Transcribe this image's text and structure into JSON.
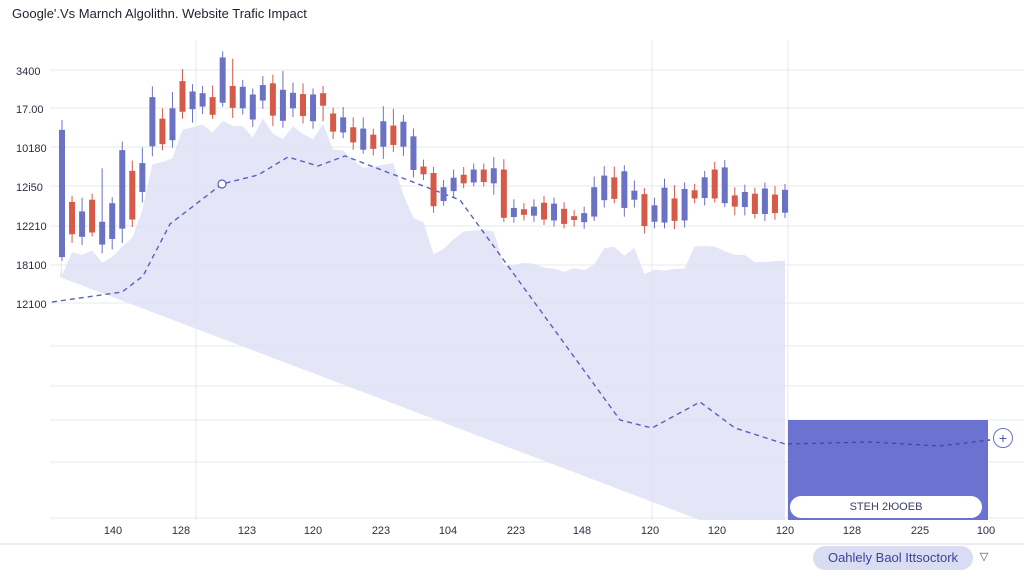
{
  "title": "Google'.Vs Marnch Algolithn. Website Trafic Impact",
  "footer": {
    "button_label": "Oahlely Baol Ittsoctork",
    "chevron_icon": "chevron-down-icon"
  },
  "overlay": {
    "label": "STEH 2ЮOEB",
    "plus_icon": "plus-icon"
  },
  "colors": {
    "up": "#6b72c4",
    "down": "#d55a4a",
    "area": "#dfe1f4",
    "trend": "#5a61bc",
    "overlay": "#6b72cf",
    "grid": "#e7e8ee"
  },
  "chart_data": {
    "type": "candlestick",
    "title": "Google'.Vs Marnch Algolithn. Website Trafic Impact",
    "y_tick_labels": [
      "3400",
      "17.00",
      "10180",
      "12i50",
      "12210",
      "18100",
      "12100"
    ],
    "x_tick_labels": [
      "140",
      "128",
      "123",
      "120",
      "223",
      "104",
      "223",
      "148",
      "120",
      "120",
      "120",
      "128",
      "225",
      "100"
    ],
    "ylim": [
      0,
      100
    ],
    "grid": true,
    "candles": [
      [
        60.5,
        90.0,
        90.9,
        61.3,
        "up"
      ],
      [
        73.3,
        65.8,
        73.0,
        64.7,
        "down"
      ],
      [
        65.2,
        71.1,
        72.9,
        64.2,
        "up"
      ],
      [
        73.8,
        66.2,
        66.1,
        74.2,
        "down"
      ],
      [
        63.4,
        68.7,
        79.7,
        62.3,
        "up"
      ],
      [
        64.7,
        73.0,
        72.2,
        63.2,
        "up"
      ],
      [
        67.1,
        85.3,
        85.9,
        64.7,
        "up"
      ],
      [
        80.5,
        69.2,
        81.5,
        68.4,
        "down"
      ],
      [
        75.6,
        82.3,
        84.5,
        74.1,
        "up"
      ],
      [
        86.2,
        97.6,
        98.7,
        84.8,
        "up"
      ],
      [
        92.6,
        86.7,
        93.6,
        86.2,
        "down"
      ],
      [
        87.6,
        95.0,
        97.4,
        86.8,
        "up"
      ],
      [
        101.3,
        94.2,
        102.7,
        93.5,
        "down"
      ],
      [
        94.8,
        98.9,
        99.2,
        92.6,
        "up"
      ],
      [
        95.4,
        98.5,
        98.8,
        94.6,
        "up"
      ],
      [
        97.6,
        93.5,
        98.9,
        93.8,
        "down"
      ],
      [
        96.3,
        106.8,
        105.2,
        96.5,
        "up"
      ],
      [
        100.2,
        95.1,
        105.1,
        93.7,
        "down"
      ],
      [
        95.0,
        100.0,
        100.2,
        94.5,
        "up"
      ],
      [
        92.4,
        98.2,
        97.9,
        91.6,
        "up"
      ],
      [
        96.8,
        100.4,
        101.1,
        95.8,
        "up"
      ],
      [
        100.8,
        93.3,
        101.4,
        91.8,
        "down"
      ],
      [
        92.1,
        99.3,
        102.3,
        91.4,
        "up"
      ],
      [
        95.0,
        98.6,
        99.6,
        93.9,
        "up"
      ],
      [
        98.3,
        93.2,
        99.4,
        92.4,
        "down"
      ],
      [
        92.0,
        98.2,
        98.2,
        91.2,
        "up"
      ],
      [
        98.5,
        95.6,
        98.8,
        92.9,
        "down"
      ],
      [
        93.8,
        89.6,
        93.7,
        88.8,
        "down"
      ],
      [
        89.4,
        92.9,
        93.9,
        89.0,
        "up"
      ],
      [
        90.6,
        87.1,
        91.5,
        86.3,
        "down"
      ],
      [
        85.4,
        90.3,
        91.5,
        85.6,
        "up"
      ],
      [
        88.9,
        85.6,
        88.8,
        85.0,
        "down"
      ],
      [
        86.1,
        92.0,
        94.1,
        84.2,
        "up"
      ],
      [
        91.0,
        86.5,
        93.5,
        85.8,
        "down"
      ],
      [
        86.1,
        91.9,
        92.1,
        84.9,
        "up"
      ],
      [
        80.7,
        88.5,
        88.9,
        79.9,
        "up"
      ],
      [
        81.5,
        79.7,
        81.7,
        79.3,
        "down"
      ],
      [
        80.0,
        72.3,
        78.7,
        71.7,
        "down"
      ],
      [
        73.5,
        76.7,
        77.0,
        73.3,
        "up"
      ],
      [
        75.8,
        78.9,
        79.4,
        75.2,
        "up"
      ],
      [
        79.6,
        77.6,
        80.0,
        77.4,
        "down"
      ],
      [
        77.8,
        80.8,
        80.5,
        77.9,
        "up"
      ],
      [
        80.8,
        77.9,
        80.6,
        77.8,
        "down"
      ],
      [
        77.6,
        81.1,
        82.3,
        75.9,
        "up"
      ],
      [
        80.8,
        69.6,
        81.8,
        69.6,
        "down"
      ],
      [
        69.8,
        71.9,
        72.5,
        69.4,
        "up"
      ],
      [
        71.6,
        70.3,
        71.6,
        69.9,
        "down"
      ],
      [
        70.1,
        72.2,
        72.5,
        69.6,
        "up"
      ],
      [
        73.1,
        69.2,
        73.3,
        68.9,
        "down"
      ],
      [
        69.0,
        72.9,
        72.5,
        68.5,
        "up"
      ],
      [
        71.7,
        68.2,
        71.8,
        68.1,
        "down"
      ],
      [
        70.0,
        69.1,
        69.9,
        68.5,
        "down"
      ],
      [
        68.6,
        70.7,
        70.8,
        68.0,
        "up"
      ],
      [
        69.9,
        76.7,
        77.8,
        69.8,
        "up"
      ],
      [
        73.7,
        79.4,
        80.2,
        72.9,
        "up"
      ],
      [
        79.0,
        74.0,
        80.1,
        73.9,
        "down"
      ],
      [
        71.9,
        80.4,
        80.3,
        70.8,
        "up"
      ],
      [
        73.8,
        75.9,
        76.9,
        72.9,
        "up"
      ],
      [
        75.1,
        67.7,
        74.5,
        66.9,
        "down"
      ],
      [
        68.7,
        72.5,
        72.9,
        68.1,
        "up"
      ],
      [
        68.5,
        76.6,
        77.3,
        68.1,
        "up"
      ],
      [
        74.1,
        68.9,
        75.8,
        67.9,
        "down"
      ],
      [
        69.0,
        76.3,
        76.4,
        68.3,
        "up"
      ],
      [
        76.0,
        74.1,
        76.1,
        73.9,
        "down"
      ],
      [
        74.2,
        79.0,
        79.1,
        73.4,
        "up"
      ],
      [
        80.8,
        74.1,
        81.2,
        74.1,
        "down"
      ],
      [
        73.0,
        81.3,
        81.6,
        73.1,
        "up"
      ],
      [
        74.8,
        72.2,
        75.3,
        71.1,
        "down"
      ],
      [
        72.1,
        75.6,
        75.9,
        71.1,
        "up"
      ],
      [
        75.2,
        70.5,
        75.2,
        70.4,
        "down"
      ],
      [
        70.5,
        76.4,
        76.3,
        69.8,
        "up"
      ],
      [
        75.0,
        70.7,
        75.6,
        70.1,
        "down"
      ],
      [
        70.8,
        76.1,
        76.1,
        70.5,
        "up"
      ]
    ]
  }
}
